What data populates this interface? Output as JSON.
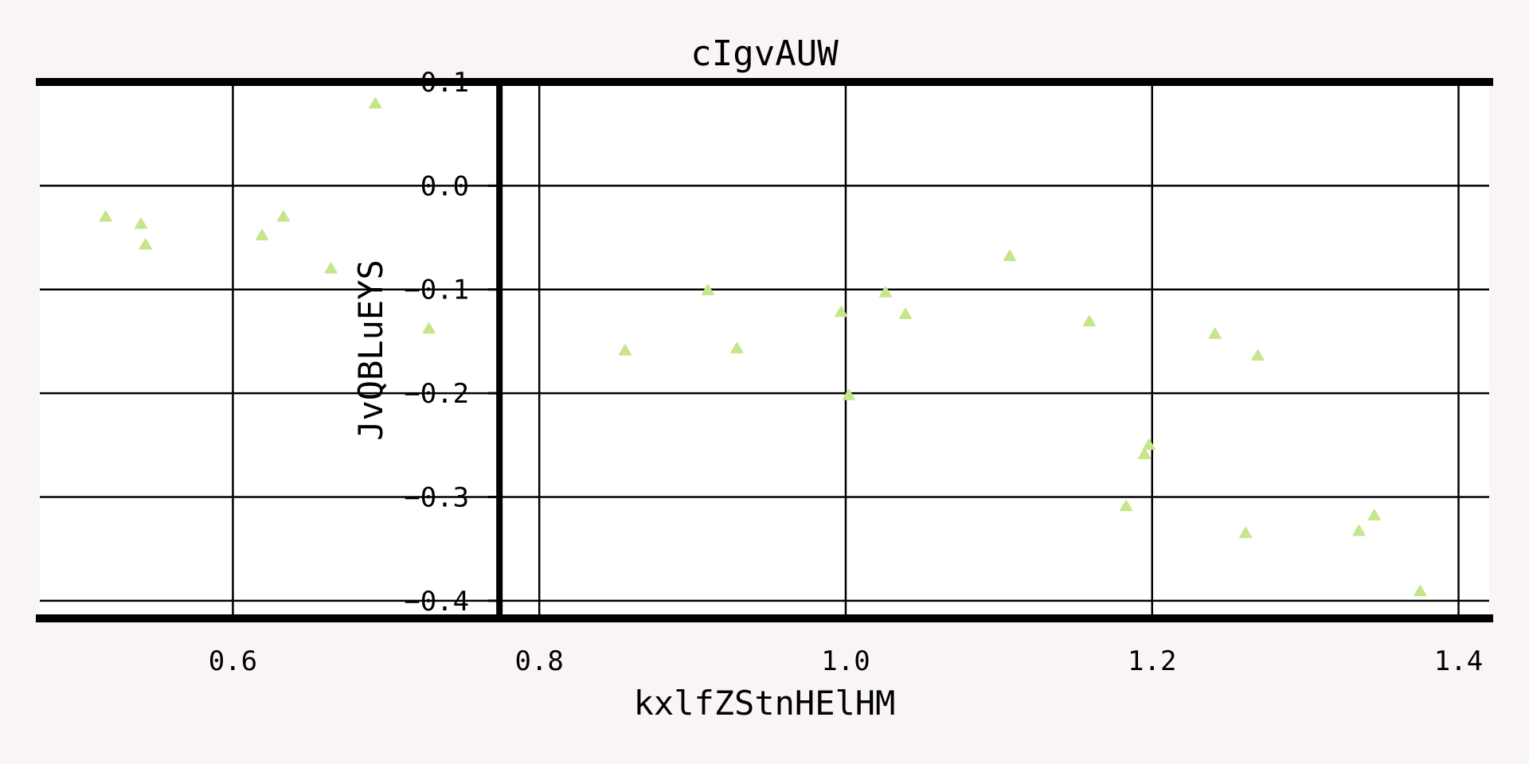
{
  "chart_data": {
    "type": "scatter",
    "title": "cIgvAUW",
    "xlabel": "kxlfZStnHElHM",
    "ylabel": "JvQBLuEYS",
    "xlim": [
      0.474,
      1.42
    ],
    "ylim": [
      -0.417,
      0.1
    ],
    "xticks": [
      0.6,
      0.8,
      1.0,
      1.2,
      1.4
    ],
    "xtick_labels": [
      "0.6",
      "0.8",
      "1.0",
      "1.2",
      "1.4"
    ],
    "yticks": [
      0.1,
      0.0,
      -0.1,
      -0.2,
      -0.3,
      -0.4
    ],
    "ytick_labels": [
      "0.1",
      "0.0",
      "−0.1",
      "−0.2",
      "−0.3",
      "−0.4"
    ],
    "y_axis_at_x": 0.774,
    "grid": true,
    "marker": "triangle-up",
    "colors": {
      "marker": "#c5e68b",
      "background": "#f9f4f8",
      "plot_area": "#ffffff",
      "axes": "#000000"
    },
    "series": [
      {
        "points": [
          [
            0.517,
            -0.03
          ],
          [
            0.54,
            -0.037
          ],
          [
            0.543,
            -0.057
          ],
          [
            0.619,
            -0.048
          ],
          [
            0.633,
            -0.03
          ],
          [
            0.664,
            -0.08
          ],
          [
            0.693,
            0.079
          ],
          [
            0.728,
            -0.138
          ],
          [
            0.856,
            -0.159
          ],
          [
            0.91,
            -0.101
          ],
          [
            0.929,
            -0.157
          ],
          [
            0.997,
            -0.122
          ],
          [
            1.002,
            -0.202
          ],
          [
            1.026,
            -0.103
          ],
          [
            1.039,
            -0.124
          ],
          [
            1.107,
            -0.068
          ],
          [
            1.159,
            -0.131
          ],
          [
            1.183,
            -0.309
          ],
          [
            1.195,
            -0.259
          ],
          [
            1.198,
            -0.25
          ],
          [
            1.241,
            -0.143
          ],
          [
            1.261,
            -0.335
          ],
          [
            1.269,
            -0.164
          ],
          [
            1.335,
            -0.333
          ],
          [
            1.345,
            -0.318
          ],
          [
            1.375,
            -0.391
          ]
        ]
      }
    ]
  }
}
